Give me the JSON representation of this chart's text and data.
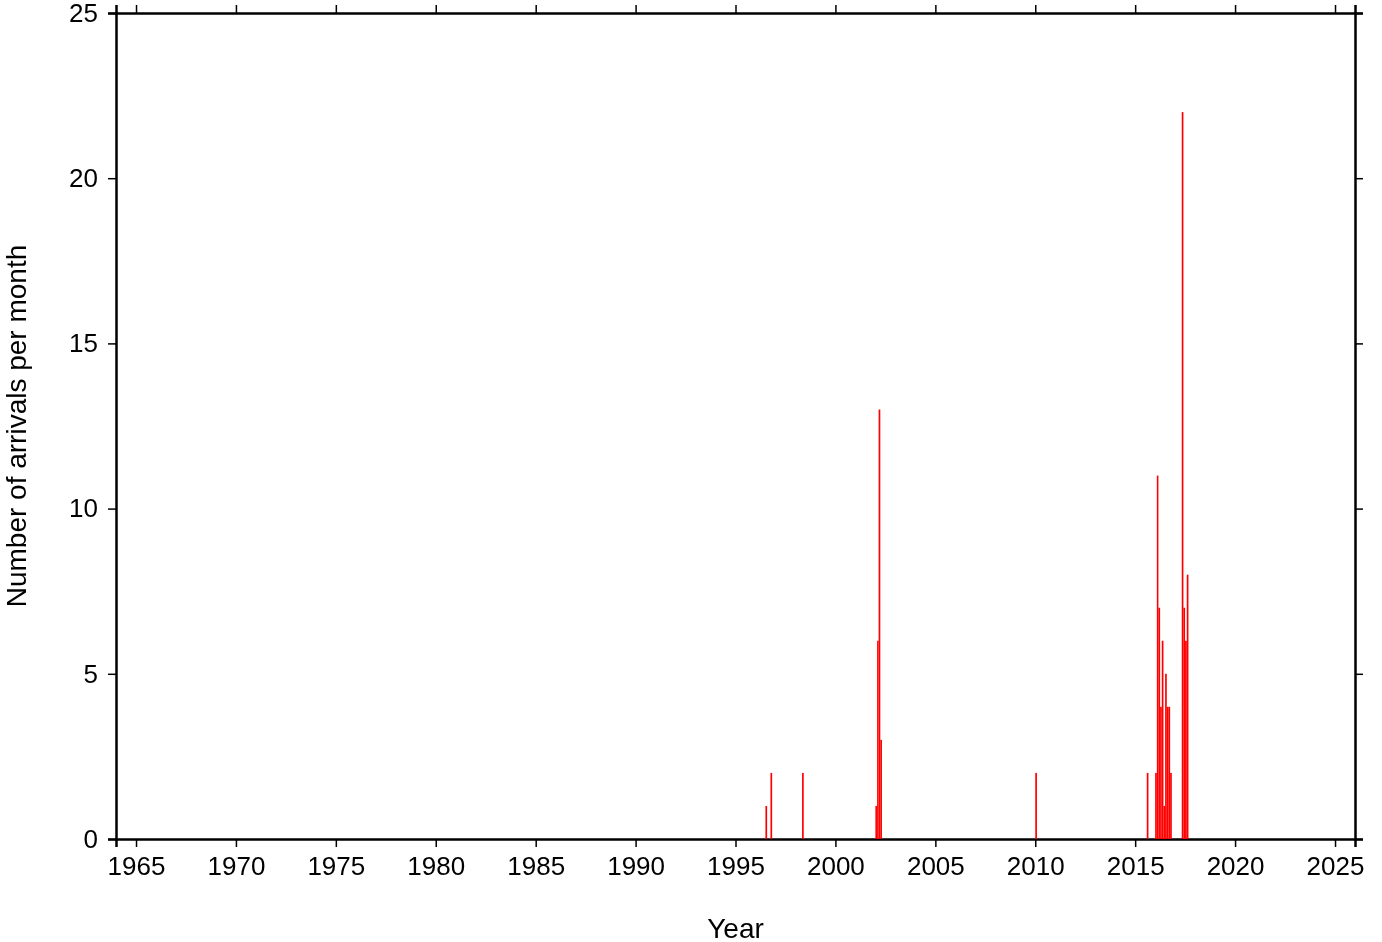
{
  "chart_data": {
    "type": "bar",
    "xlabel": "Year",
    "ylabel": "Number of arrivals per month",
    "x": [
      "1996-07",
      "1996-10",
      "1998-05",
      "2002-01",
      "2002-02",
      "2002-03",
      "2002-04",
      "2010-01",
      "2015-08",
      "2016-01",
      "2016-02",
      "2016-03",
      "2016-04",
      "2016-05",
      "2016-06",
      "2016-07",
      "2016-08",
      "2016-09",
      "2016-10",
      "2017-05",
      "2017-06",
      "2017-07",
      "2017-08"
    ],
    "values": [
      1,
      2,
      2,
      1,
      6,
      13,
      3,
      2,
      2,
      2,
      11,
      7,
      4,
      6,
      1,
      5,
      4,
      4,
      2,
      22,
      7,
      6,
      8
    ],
    "color": "#ff0000",
    "xlim": [
      "1964",
      "2026"
    ],
    "xticks": [
      "1965",
      "1970",
      "1975",
      "1980",
      "1985",
      "1990",
      "1995",
      "2000",
      "2005",
      "2010",
      "2015",
      "2020",
      "2025"
    ],
    "ylim": [
      0,
      25
    ],
    "yticks": [
      0,
      5,
      10,
      15,
      20,
      25
    ]
  }
}
